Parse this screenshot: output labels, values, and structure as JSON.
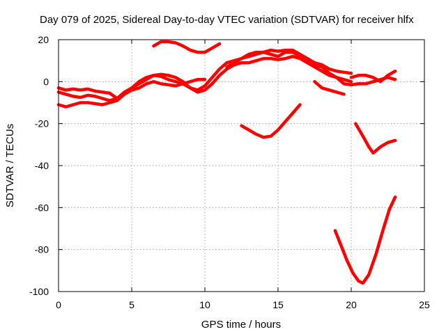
{
  "chart_data": {
    "type": "line",
    "title": "Day 079 of 2025, Sidereal Day-to-day VTEC variation (SDTVAR) for receiver hlfx",
    "xlabel": "GPS time / hours",
    "ylabel": "SDTVAR / TECUs",
    "xlim": [
      0,
      25
    ],
    "ylim": [
      -100,
      20
    ],
    "xticks": [
      0,
      5,
      10,
      15,
      20,
      25
    ],
    "yticks": [
      -100,
      -80,
      -60,
      -40,
      -20,
      0,
      20
    ],
    "grid": true,
    "legend": "none",
    "color": "#ff0000",
    "series": [
      {
        "values": [
          [
            0,
            -3
          ],
          [
            0.5,
            -4
          ],
          [
            1,
            -3.5
          ],
          [
            1.5,
            -4
          ],
          [
            2,
            -3.5
          ],
          [
            2.5,
            -4.5
          ],
          [
            3,
            -5
          ],
          [
            3.5,
            -5.5
          ],
          [
            4,
            -8
          ],
          [
            4.5,
            -6
          ],
          [
            5,
            -4
          ],
          [
            5.5,
            -3
          ],
          [
            6,
            -1
          ],
          [
            6.5,
            0
          ],
          [
            7,
            -1
          ],
          [
            7.5,
            -1.5
          ],
          [
            8,
            -2
          ],
          [
            8.5,
            -1
          ],
          [
            9,
            0
          ],
          [
            9.5,
            1
          ],
          [
            10,
            1
          ]
        ]
      },
      {
        "values": [
          [
            0,
            -5
          ],
          [
            0.5,
            -6
          ],
          [
            1,
            -7
          ],
          [
            1.5,
            -7.5
          ],
          [
            2,
            -6.5
          ],
          [
            2.5,
            -7
          ],
          [
            3,
            -8
          ],
          [
            3.5,
            -9
          ],
          [
            4,
            -8
          ],
          [
            4.5,
            -5
          ],
          [
            5,
            -3
          ],
          [
            5.5,
            -1
          ],
          [
            6,
            1
          ],
          [
            6.5,
            3
          ],
          [
            7,
            3.5
          ],
          [
            7.5,
            3
          ],
          [
            8,
            2
          ],
          [
            8.5,
            0
          ],
          [
            9,
            -3
          ],
          [
            9.5,
            -4
          ],
          [
            10,
            -2
          ],
          [
            10.5,
            2
          ],
          [
            11,
            6
          ],
          [
            11.5,
            9
          ],
          [
            12,
            10
          ],
          [
            12.5,
            11
          ],
          [
            13,
            13
          ],
          [
            13.5,
            14
          ],
          [
            14,
            14
          ],
          [
            14.5,
            15
          ],
          [
            15,
            14.5
          ],
          [
            15.5,
            15
          ],
          [
            16,
            15
          ],
          [
            16.5,
            13
          ],
          [
            17,
            11
          ],
          [
            17.5,
            9
          ],
          [
            18,
            8
          ],
          [
            18.5,
            6
          ],
          [
            19,
            5
          ],
          [
            19.5,
            4.5
          ],
          [
            20,
            4
          ]
        ]
      },
      {
        "values": [
          [
            0,
            -11
          ],
          [
            0.5,
            -12
          ],
          [
            1,
            -11
          ],
          [
            1.5,
            -10
          ],
          [
            2,
            -10
          ],
          [
            2.5,
            -10.5
          ],
          [
            3,
            -11
          ],
          [
            3.5,
            -10
          ],
          [
            4,
            -9
          ],
          [
            4.5,
            -6
          ],
          [
            5,
            -3
          ],
          [
            5.5,
            0
          ],
          [
            6,
            2
          ],
          [
            6.5,
            3
          ],
          [
            7,
            2.5
          ],
          [
            7.5,
            1
          ],
          [
            8,
            0
          ],
          [
            8.5,
            -1
          ],
          [
            9,
            -3
          ],
          [
            9.5,
            -5
          ],
          [
            10,
            -4
          ],
          [
            10.5,
            -1
          ],
          [
            11,
            3
          ],
          [
            11.5,
            6
          ],
          [
            12,
            8
          ],
          [
            12.5,
            9
          ],
          [
            13,
            9
          ],
          [
            13.5,
            10
          ],
          [
            14,
            11
          ],
          [
            14.5,
            11
          ],
          [
            15,
            10.5
          ],
          [
            15.5,
            11
          ],
          [
            16,
            12
          ],
          [
            16.5,
            11
          ],
          [
            17,
            9
          ],
          [
            17.5,
            7
          ],
          [
            18,
            5
          ],
          [
            18.5,
            3
          ],
          [
            19,
            2
          ],
          [
            19.5,
            1
          ],
          [
            20,
            0
          ]
        ]
      },
      {
        "values": [
          [
            6.5,
            17
          ],
          [
            7,
            19
          ],
          [
            7.5,
            19
          ],
          [
            8,
            18.5
          ],
          [
            8.5,
            17
          ],
          [
            9,
            15
          ],
          [
            9.5,
            14
          ],
          [
            10,
            14
          ],
          [
            10.5,
            16
          ],
          [
            11,
            18
          ]
        ]
      },
      {
        "values": [
          [
            11.5,
            7
          ],
          [
            12,
            9
          ],
          [
            12.5,
            11
          ],
          [
            13,
            12
          ],
          [
            13.5,
            13
          ],
          [
            14,
            14
          ],
          [
            14.5,
            13
          ],
          [
            15,
            12
          ],
          [
            15.5,
            14
          ],
          [
            16,
            14
          ],
          [
            16.5,
            12
          ],
          [
            17,
            10
          ],
          [
            17.5,
            8
          ],
          [
            18,
            7
          ],
          [
            18.5,
            4
          ],
          [
            19,
            2
          ],
          [
            19.5,
            -1
          ],
          [
            20,
            -1.5
          ],
          [
            20.5,
            -1
          ],
          [
            21,
            -1
          ],
          [
            21.5,
            0
          ],
          [
            22,
            1
          ],
          [
            22.5,
            2
          ],
          [
            23,
            1
          ]
        ]
      },
      {
        "values": [
          [
            20,
            2
          ],
          [
            20.5,
            3
          ],
          [
            21,
            3
          ],
          [
            21.5,
            2
          ],
          [
            22,
            0
          ],
          [
            22.5,
            3
          ],
          [
            23,
            5
          ]
        ]
      },
      {
        "values": [
          [
            17.5,
            0
          ],
          [
            18,
            -3
          ],
          [
            18.5,
            -4
          ],
          [
            19,
            -5
          ],
          [
            19.5,
            -6
          ]
        ]
      },
      {
        "values": [
          [
            12.5,
            -21
          ],
          [
            13,
            -23
          ],
          [
            13.5,
            -25
          ],
          [
            14,
            -26.5
          ],
          [
            14.5,
            -26
          ],
          [
            15,
            -23
          ],
          [
            15.5,
            -19
          ],
          [
            16,
            -15
          ],
          [
            16.5,
            -11
          ]
        ]
      },
      {
        "values": [
          [
            20.3,
            -20
          ],
          [
            20.8,
            -26
          ],
          [
            21.2,
            -31
          ],
          [
            21.5,
            -34
          ],
          [
            22,
            -31
          ],
          [
            22.5,
            -29
          ],
          [
            23,
            -28
          ]
        ]
      },
      {
        "values": [
          [
            18.9,
            -71
          ],
          [
            19.3,
            -78
          ],
          [
            19.7,
            -85
          ],
          [
            20.1,
            -91
          ],
          [
            20.5,
            -95
          ],
          [
            20.8,
            -96
          ],
          [
            21.2,
            -92
          ],
          [
            21.7,
            -82
          ],
          [
            22.2,
            -70
          ],
          [
            22.6,
            -61
          ],
          [
            23,
            -55
          ]
        ]
      }
    ]
  }
}
